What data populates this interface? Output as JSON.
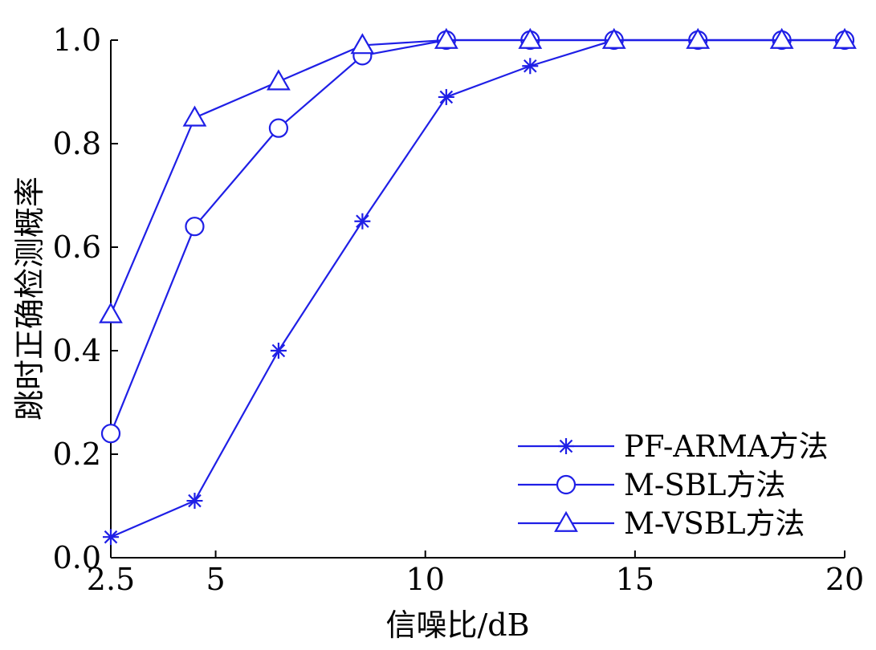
{
  "chart_data": {
    "type": "line",
    "xlabel": "信噪比/dB",
    "ylabel": "跳时正确检测概率",
    "xlim": [
      2.5,
      20
    ],
    "ylim": [
      0.0,
      1.0
    ],
    "xticks": [
      2.5,
      5,
      10,
      15,
      20
    ],
    "xtick_labels": [
      "2.5",
      "5",
      "10",
      "15",
      "20"
    ],
    "yticks": [
      0.0,
      0.2,
      0.4,
      0.6,
      0.8,
      1.0
    ],
    "ytick_labels": [
      "0.0",
      "0.2",
      "0.4",
      "0.6",
      "0.8",
      "1.0"
    ],
    "grid": false,
    "legend_position": "bottom-right",
    "line_color": "#1f1fe6",
    "x": [
      2.5,
      4.5,
      6.5,
      8.5,
      10.5,
      12.5,
      14.5,
      16.5,
      18.5,
      20.5
    ],
    "series": [
      {
        "name": "PF-ARMA方法",
        "marker": "asterisk",
        "values": [
          0.04,
          0.11,
          0.4,
          0.65,
          0.89,
          0.95,
          1.0,
          1.0,
          1.0,
          1.0
        ]
      },
      {
        "name": "M-SBL方法",
        "marker": "circle",
        "values": [
          0.24,
          0.64,
          0.83,
          0.97,
          1.0,
          1.0,
          1.0,
          1.0,
          1.0,
          1.0
        ]
      },
      {
        "name": "M-VSBL方法",
        "marker": "triangle",
        "values": [
          0.47,
          0.85,
          0.92,
          0.99,
          1.0,
          1.0,
          1.0,
          1.0,
          1.0,
          1.0
        ]
      }
    ]
  }
}
